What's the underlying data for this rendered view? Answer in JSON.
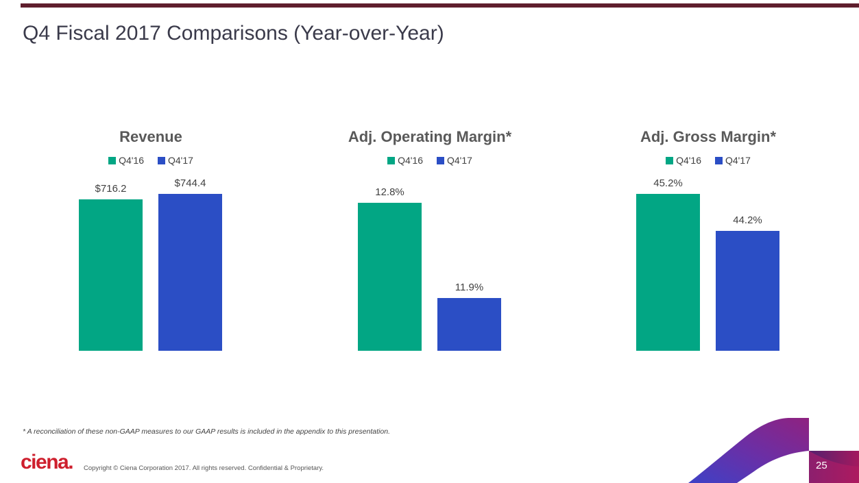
{
  "slide": {
    "title": "Q4 Fiscal 2017 Comparisons (Year-over-Year)",
    "footnote": "* A reconciliation of these non-GAAP measures to our GAAP results is included in the appendix to this presentation.",
    "logo_text": "ciena.",
    "copyright": "Copyright © Ciena Corporation 2017. All rights reserved. Confidential & Proprietary.",
    "page_number": "25"
  },
  "colors": {
    "q4_16_green": "#02A684",
    "q4_17_blue": "#2B4EC5",
    "slide_title_text": "#3A3A4A",
    "chart_title_text": "#595959",
    "label_text": "#404040",
    "logo_red": "#CE1F2D",
    "top_accent_bar": "#5F1E2D",
    "swoosh_blue": "#3E41C6",
    "swoosh_purple": "#6A2FA6",
    "swoosh_magenta": "#8F2280",
    "page_box_dark_purple": "#54216F",
    "page_box_crimson": "#A4195E"
  },
  "chart_data": [
    {
      "type": "bar",
      "title": "Revenue",
      "categories": [
        "Q4'16",
        "Q4'17"
      ],
      "values": [
        716.2,
        744.4
      ],
      "labels": [
        "$716.2",
        "$744.4"
      ],
      "series": [
        {
          "name": "Q4'16",
          "color": "#02A684"
        },
        {
          "name": "Q4'17",
          "color": "#2B4EC5"
        }
      ],
      "ylim": [
        0,
        850
      ],
      "grid": false,
      "axes_hidden": true,
      "legend_position": "top"
    },
    {
      "type": "bar",
      "title": "Adj. Operating Margin*",
      "categories": [
        "Q4'16",
        "Q4'17"
      ],
      "values": [
        12.8,
        11.9
      ],
      "labels": [
        "12.8%",
        "11.9%"
      ],
      "series": [
        {
          "name": "Q4'16",
          "color": "#02A684"
        },
        {
          "name": "Q4'17",
          "color": "#2B4EC5"
        }
      ],
      "ylim": [
        11.4,
        13.1
      ],
      "grid": false,
      "axes_hidden": true,
      "legend_position": "top"
    },
    {
      "type": "bar",
      "title": "Adj. Gross Margin*",
      "categories": [
        "Q4'16",
        "Q4'17"
      ],
      "values": [
        45.2,
        44.2
      ],
      "labels": [
        "45.2%",
        "44.2%"
      ],
      "series": [
        {
          "name": "Q4'16",
          "color": "#02A684"
        },
        {
          "name": "Q4'17",
          "color": "#2B4EC5"
        }
      ],
      "ylim": [
        41,
        45.8
      ],
      "grid": false,
      "axes_hidden": true,
      "legend_position": "top"
    }
  ]
}
